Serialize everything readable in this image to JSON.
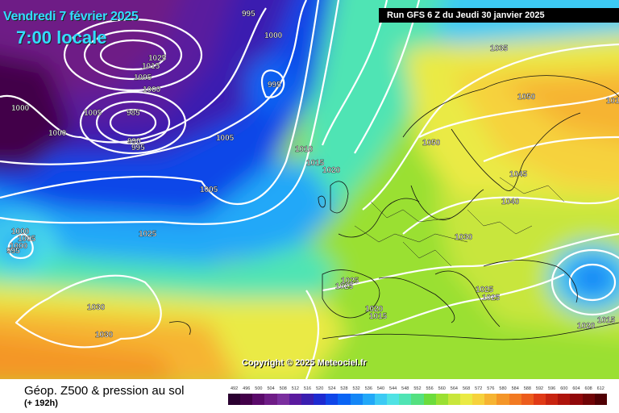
{
  "header": {
    "date_text": "Vendredi 7 février 2025",
    "time_text": "7:00 locale",
    "run_text": "Run GFS 6 Z du Jeudi 30 janvier 2025"
  },
  "copyright": "Copyright © 2025 Meteociel.fr",
  "footer": {
    "field_title": "Géop. Z500 & pression au sol",
    "lead_time": "(+ 192h)"
  },
  "legend": {
    "values": [
      "492",
      "496",
      "500",
      "504",
      "508",
      "512",
      "516",
      "520",
      "524",
      "528",
      "532",
      "536",
      "540",
      "544",
      "548",
      "552",
      "556",
      "560",
      "564",
      "568",
      "572",
      "576",
      "580",
      "584",
      "588",
      "592",
      "596",
      "600",
      "604",
      "608",
      "612"
    ],
    "colors": [
      "#2a0030",
      "#420048",
      "#5a0a6a",
      "#6e1c86",
      "#7a2e9e",
      "#5a1a9e",
      "#3a1eb0",
      "#1e2ad0",
      "#1046e8",
      "#0a64f4",
      "#1486f6",
      "#22a8f8",
      "#3ccaf4",
      "#50e2e4",
      "#50e4b4",
      "#54e080",
      "#6cdc3c",
      "#9ae032",
      "#c8e63c",
      "#eaea44",
      "#f6d23c",
      "#f6b432",
      "#f49628",
      "#f27a22",
      "#ec5c1c",
      "#e03a16",
      "#c82410",
      "#ae140c",
      "#90080a",
      "#700406",
      "#500004"
    ]
  },
  "pressure_labels": [
    "995",
    "1000",
    "1025",
    "1015",
    "1005",
    "1000",
    "985",
    "990",
    "995",
    "1000",
    "1005",
    "995",
    "1000",
    "1000",
    "1005",
    "1010",
    "1015",
    "1020",
    "1005",
    "1025",
    "1000",
    "1005",
    "995",
    "1030",
    "1030",
    "1035",
    "1050",
    "1050",
    "1045",
    "1040",
    "1030",
    "1025",
    "1025",
    "1020",
    "1015",
    "1025",
    "1025",
    "1015",
    "1020",
    "1015"
  ]
}
